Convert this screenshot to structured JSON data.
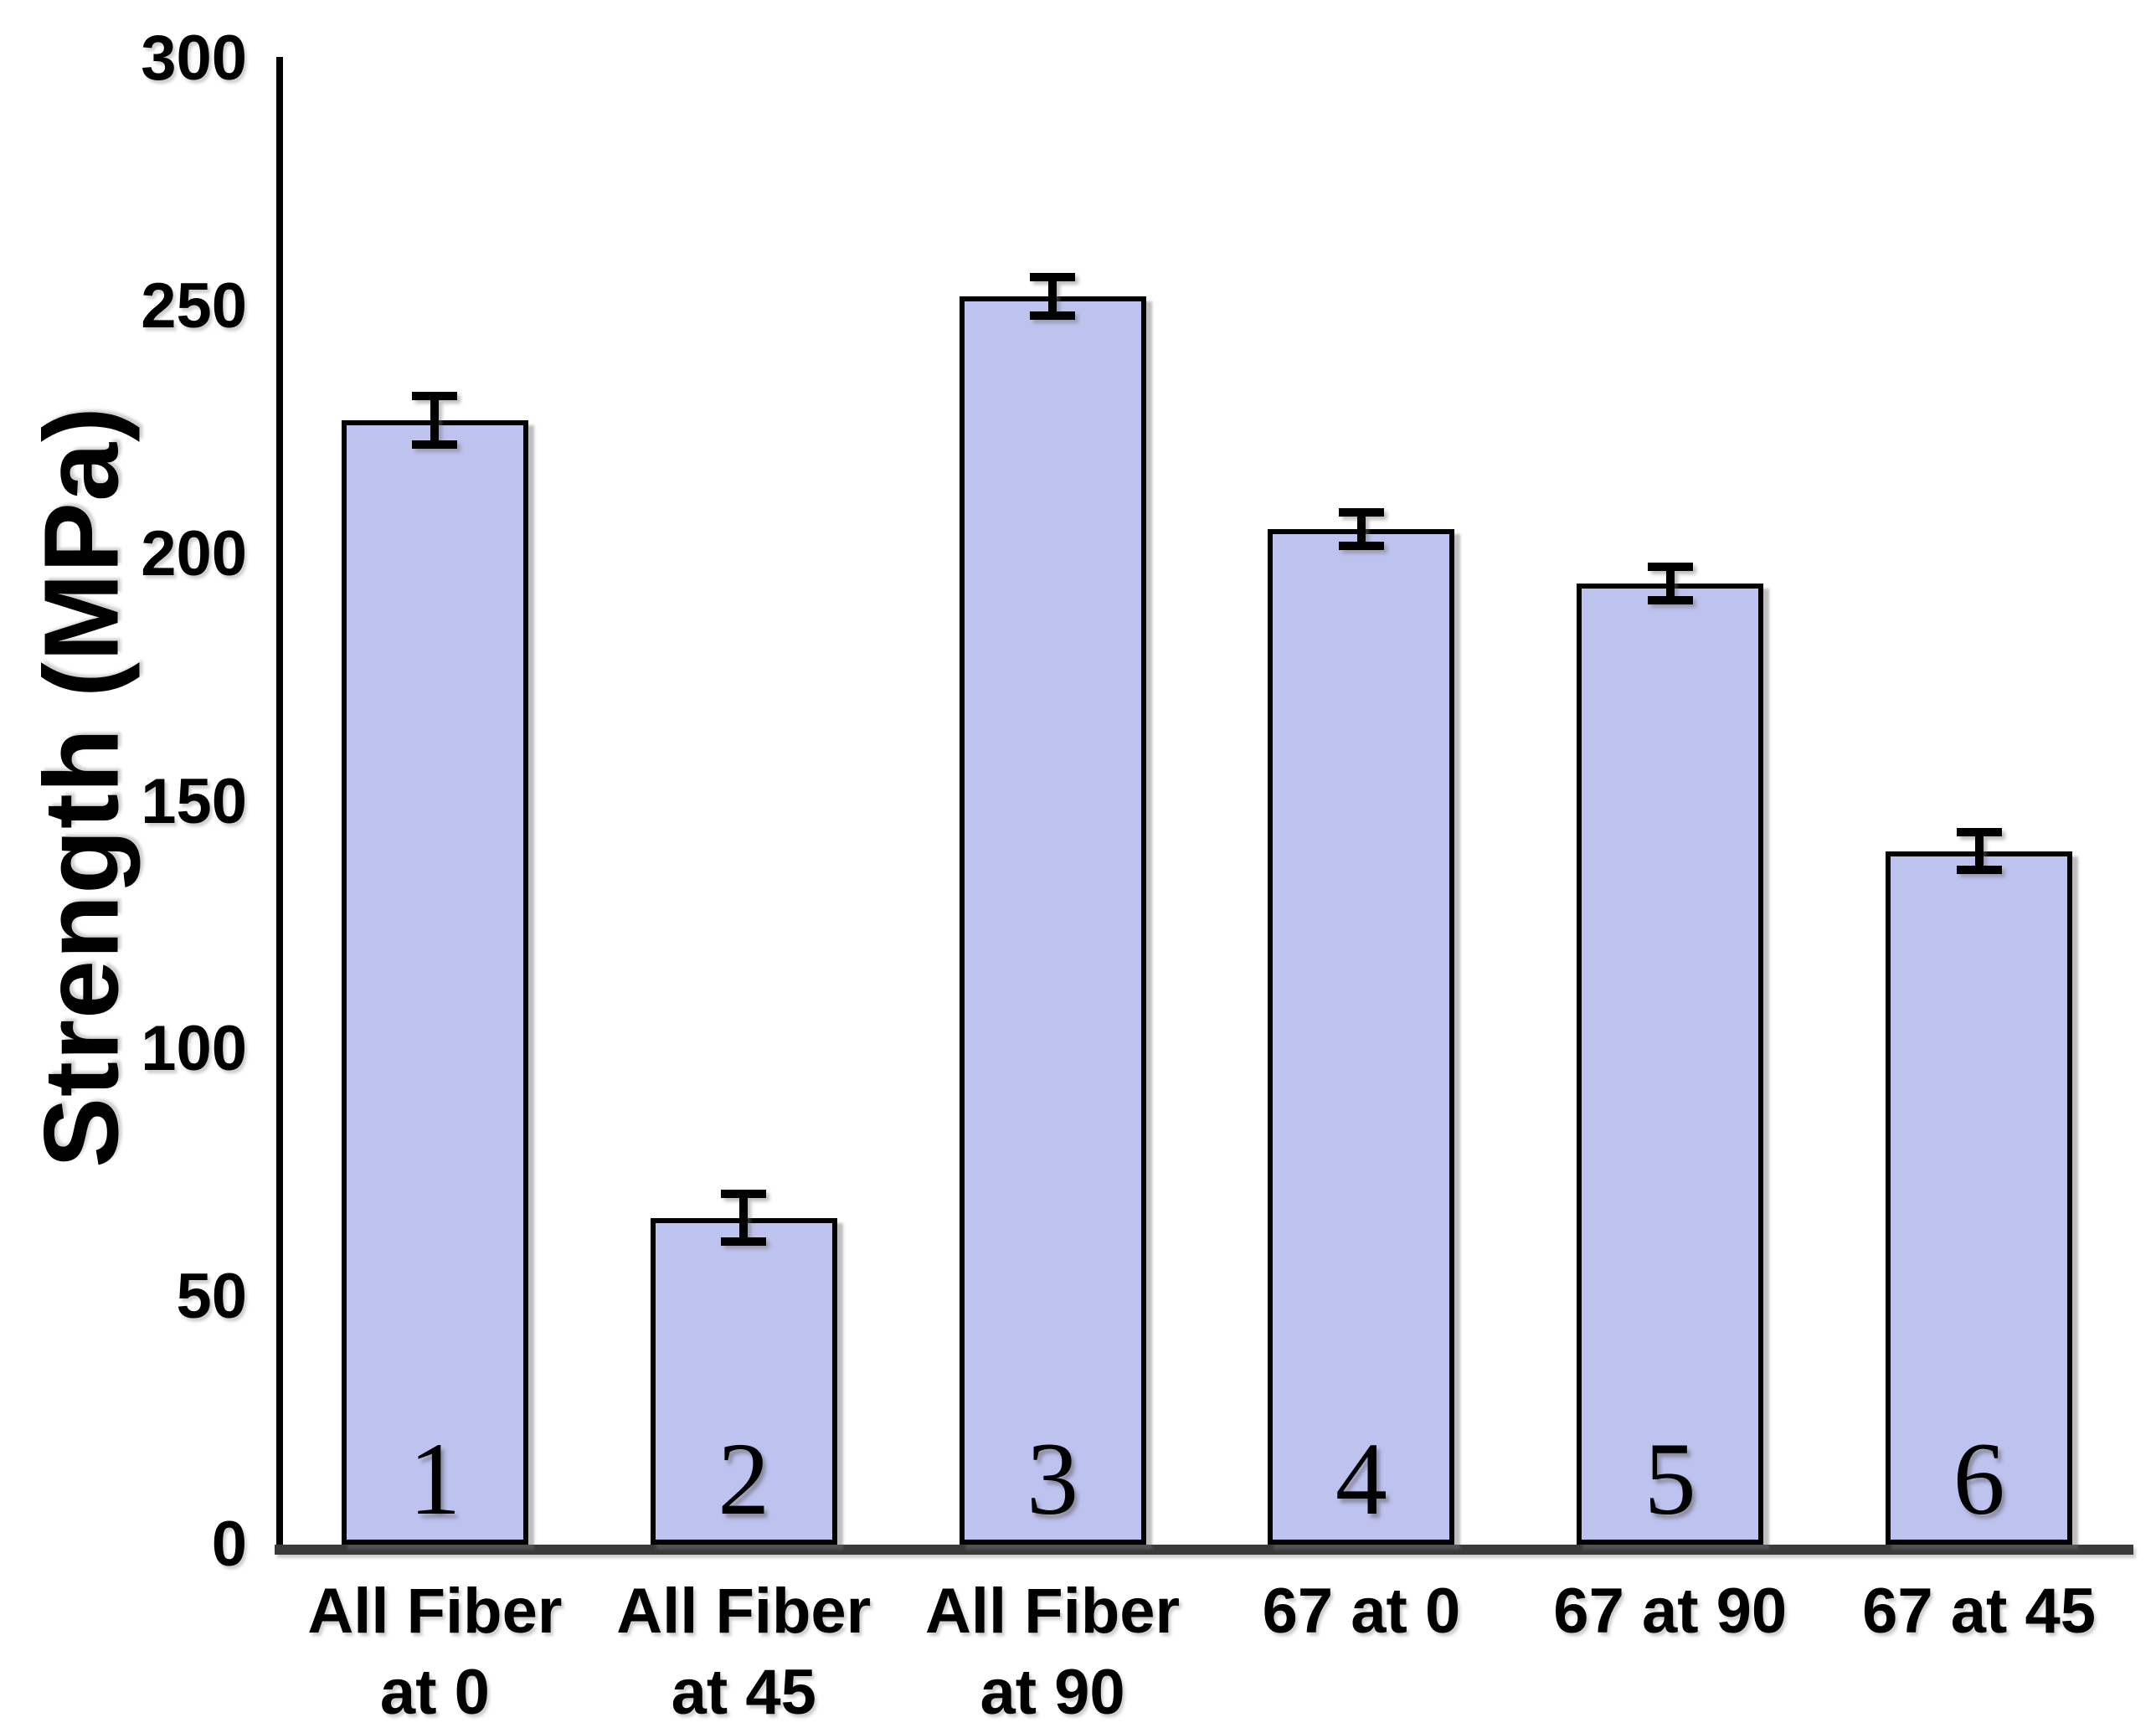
{
  "chart_data": {
    "type": "bar",
    "title": "",
    "xlabel": "",
    "ylabel": "Strength (MPa)",
    "ylim": [
      0,
      300
    ],
    "yticks": [
      300,
      250,
      200,
      150,
      100,
      50,
      0
    ],
    "grid": false,
    "legend": null,
    "categories": [
      "All Fiber\nat 0",
      "All Fiber\nat 45",
      "All Fiber\nat 90",
      "67 at 0",
      "67 at 90",
      "67 at 45"
    ],
    "bar_numbers": [
      "1",
      "2",
      "3",
      "4",
      "5",
      "6"
    ],
    "series": [
      {
        "name": "Strength (MPa)",
        "values": [
          227,
          66,
          252,
          205,
          194,
          140
        ],
        "errors": [
          4,
          4,
          3,
          2.5,
          2.5,
          3
        ]
      }
    ],
    "colors": {
      "bar_fill": "#bec2ef",
      "bar_border": "#000000",
      "axis": "#000000",
      "baseline": "#3a3a3a",
      "text": "#000000"
    }
  }
}
